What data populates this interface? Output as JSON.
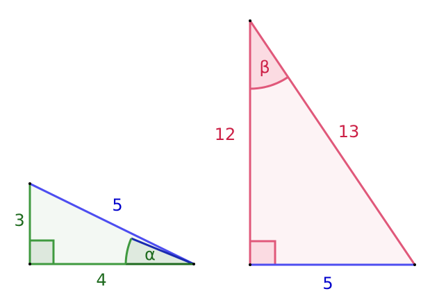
{
  "triangles": [
    {
      "legs": [
        "3",
        "4"
      ],
      "hypotenuse": "5",
      "angle": "α"
    },
    {
      "legs": [
        "12",
        "5"
      ],
      "hypotenuse": "13",
      "angle": "β"
    }
  ]
}
